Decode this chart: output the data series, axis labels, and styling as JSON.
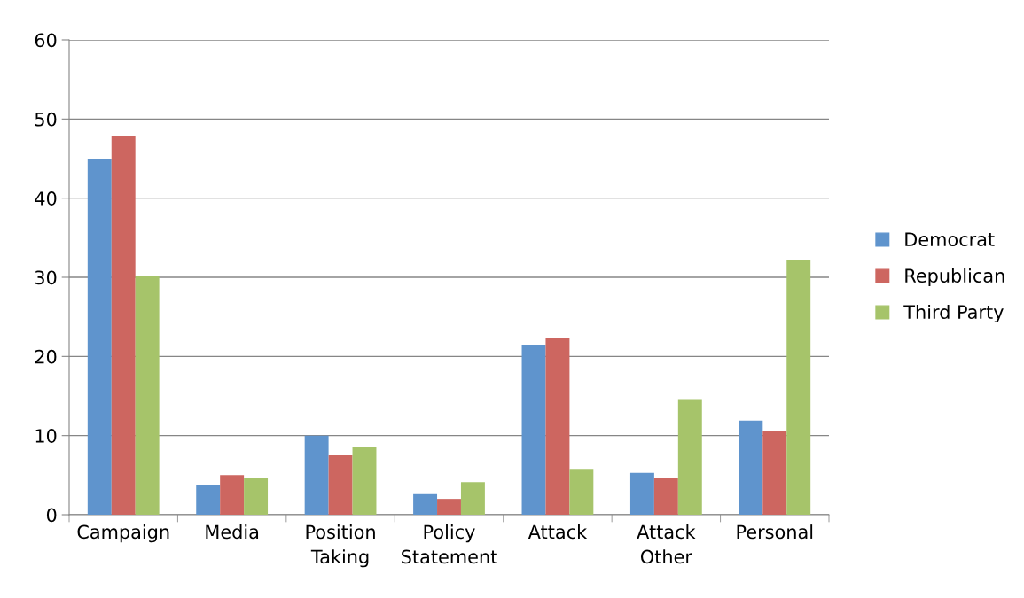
{
  "chart_data": {
    "type": "bar",
    "categories": [
      "Campaign",
      "Media",
      "Position\nTaking",
      "Policy\nStatement",
      "Attack",
      "Attack\nOther",
      "Personal"
    ],
    "series": [
      {
        "name": "Democrat",
        "color": "#5f94cd",
        "values": [
          44.9,
          3.8,
          10.0,
          2.6,
          21.5,
          5.3,
          11.9
        ]
      },
      {
        "name": "Republican",
        "color": "#cd6660",
        "values": [
          47.9,
          5.0,
          7.5,
          2.0,
          22.4,
          4.6,
          10.6
        ]
      },
      {
        "name": "Third Party",
        "color": "#a6c46a",
        "values": [
          30.1,
          4.6,
          8.5,
          4.1,
          5.8,
          14.6,
          32.2
        ]
      }
    ],
    "ylim": [
      0,
      60
    ],
    "yticks": [
      0,
      10,
      20,
      30,
      40,
      50,
      60
    ],
    "grid": "y",
    "legend": "right"
  }
}
